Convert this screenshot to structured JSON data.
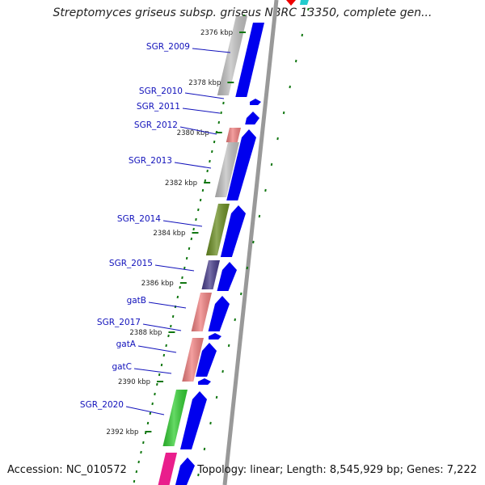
{
  "title": "Streptomyces griseus subsp. griseus NBRC 13350, complete gen...",
  "accession": "Accession: NC_010572",
  "topology": "Topology: linear; Length: 8,545,929 bp; Genes: 7,222",
  "colors": {
    "forward_arrow": "#0000ee",
    "label": "#1111bb",
    "tick": "#117711",
    "backbone": "#999999"
  },
  "ticks": [
    {
      "label": "2376 kbp"
    },
    {
      "label": "2378 kbp"
    },
    {
      "label": "2380 kbp"
    },
    {
      "label": "2382 kbp"
    },
    {
      "label": "2384 kbp"
    },
    {
      "label": "2386 kbp"
    },
    {
      "label": "2388 kbp"
    },
    {
      "label": "2390 kbp"
    },
    {
      "label": "2392 kbp"
    }
  ],
  "genes": [
    {
      "label": "SGR_2009",
      "color": "#c0c0c0"
    },
    {
      "label": "SGR_2010",
      "color": "#0000ee"
    },
    {
      "label": "SGR_2011",
      "color": "#0000ee"
    },
    {
      "label": "SGR_2012",
      "color": "#f08080"
    },
    {
      "label": "SGR_2013",
      "color": "#c0c0c0"
    },
    {
      "label": "SGR_2014",
      "color": "#6b8e23"
    },
    {
      "label": "SGR_2015",
      "color": "#483d8b"
    },
    {
      "label": "gatB",
      "color": "#f08080"
    },
    {
      "label": "SGR_2017",
      "color": "#0000ee"
    },
    {
      "label": "gatA",
      "color": "#f08080"
    },
    {
      "label": "gatC",
      "color": "#0000ee"
    },
    {
      "label": "SGR_2020",
      "color": "#32cd32"
    }
  ]
}
